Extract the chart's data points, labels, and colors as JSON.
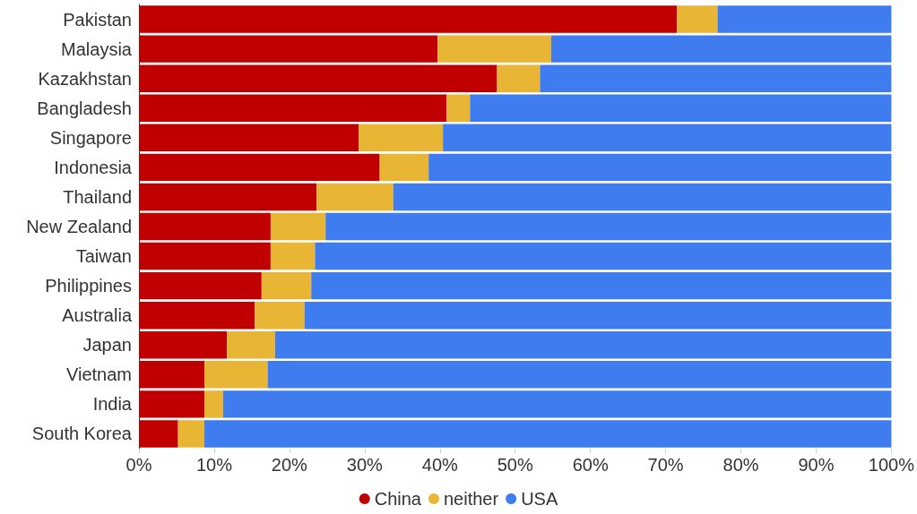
{
  "chart_data": {
    "type": "bar",
    "orientation": "horizontal",
    "stacked": true,
    "categories": [
      "Pakistan",
      "Malaysia",
      "Kazakhstan",
      "Bangladesh",
      "Singapore",
      "Indonesia",
      "Thailand",
      "New Zealand",
      "Taiwan",
      "Philippines",
      "Australia",
      "Japan",
      "Vietnam",
      "India",
      "South Korea"
    ],
    "series": [
      {
        "name": "China",
        "color": "#c00000",
        "values": [
          71.5,
          39.7,
          47.6,
          40.9,
          29.2,
          32.0,
          23.6,
          17.5,
          17.5,
          16.3,
          15.4,
          11.7,
          8.7,
          8.7,
          5.2
        ]
      },
      {
        "name": "neither",
        "color": "#e8b634",
        "values": [
          5.4,
          15.1,
          5.7,
          3.1,
          11.2,
          6.5,
          10.2,
          7.3,
          5.9,
          6.6,
          6.6,
          6.4,
          8.4,
          2.5,
          3.5
        ]
      },
      {
        "name": "USA",
        "color": "#3f7cf0",
        "values": [
          23.1,
          45.2,
          46.7,
          56.0,
          59.6,
          61.5,
          66.2,
          75.2,
          76.6,
          77.1,
          78.0,
          81.9,
          82.9,
          88.8,
          91.3
        ]
      }
    ],
    "xlim": [
      0,
      100
    ],
    "xticks": [
      {
        "value": 0,
        "label": "0%"
      },
      {
        "value": 10,
        "label": "10%"
      },
      {
        "value": 20,
        "label": "20%"
      },
      {
        "value": 30,
        "label": "30%"
      },
      {
        "value": 40,
        "label": "40%"
      },
      {
        "value": 50,
        "label": "50%"
      },
      {
        "value": 60,
        "label": "60%"
      },
      {
        "value": 70,
        "label": "70%"
      },
      {
        "value": 80,
        "label": "80%"
      },
      {
        "value": 90,
        "label": "90%"
      },
      {
        "value": 100,
        "label": "100%"
      }
    ],
    "grid": false,
    "legend": "bottom"
  }
}
